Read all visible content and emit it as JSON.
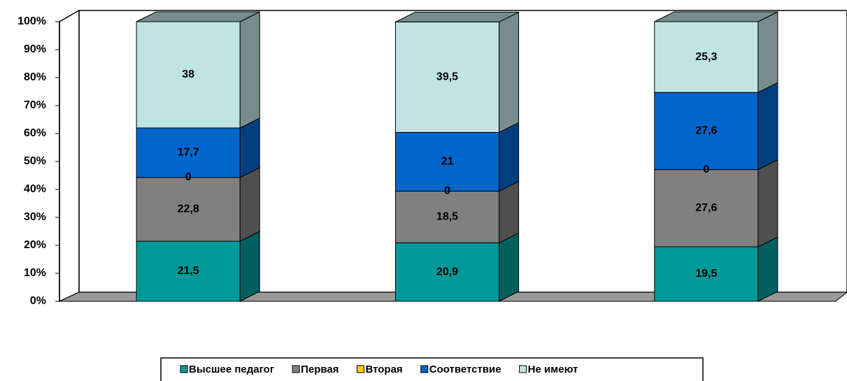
{
  "chart_data": {
    "type": "stacked_bar_3d",
    "categories": [
      null,
      null,
      null
    ],
    "series": [
      {
        "name": "Высшее педагог",
        "color": "#009999",
        "values": [
          21.5,
          20.9,
          19.5
        ],
        "value_labels": [
          "21,5",
          "20,9",
          "19,5"
        ]
      },
      {
        "name": "Первая",
        "color": "#808080",
        "values": [
          22.8,
          18.5,
          27.6
        ],
        "value_labels": [
          "22,8",
          "18,5",
          "27,6"
        ]
      },
      {
        "name": "Вторая",
        "color": "#ffcc00",
        "values": [
          0,
          0,
          0
        ],
        "value_labels": [
          "0",
          "0",
          "0"
        ]
      },
      {
        "name": "Соответствие",
        "color": "#0066cc",
        "values": [
          17.7,
          21,
          27.6
        ],
        "value_labels": [
          "17,7",
          "21",
          "27,6"
        ]
      },
      {
        "name": "Не имеют",
        "color": "#c0e4e4",
        "values": [
          38,
          39.5,
          25.3
        ],
        "value_labels": [
          "38",
          "39,5",
          "25,3"
        ]
      }
    ],
    "ylim": [
      0,
      100
    ],
    "yticks": [
      {
        "value": 0,
        "label": "0%"
      },
      {
        "value": 10,
        "label": "10%"
      },
      {
        "value": 20,
        "label": "20%"
      },
      {
        "value": 30,
        "label": "30%"
      },
      {
        "value": 40,
        "label": "40%"
      },
      {
        "value": 50,
        "label": "50%"
      },
      {
        "value": 60,
        "label": "60%"
      },
      {
        "value": 70,
        "label": "70%"
      },
      {
        "value": 80,
        "label": "80%"
      },
      {
        "value": 90,
        "label": "90%"
      },
      {
        "value": 100,
        "label": "100%"
      }
    ],
    "legend": "bottom"
  }
}
